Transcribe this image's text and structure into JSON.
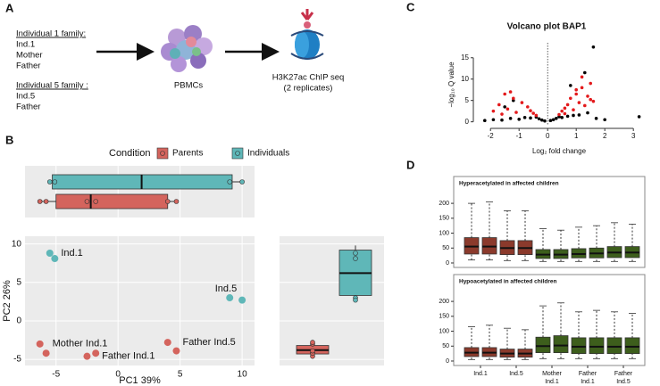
{
  "panel_labels": [
    "A",
    "B",
    "C",
    "D"
  ],
  "diagram": {
    "families": [
      {
        "title": "Individual 1 family:",
        "members": [
          "Ind.1",
          "Mother",
          "Father"
        ]
      },
      {
        "title": "Individual 5 family :",
        "members": [
          "Ind.5",
          "Father"
        ]
      }
    ],
    "steps": [
      "PBMCs",
      "H3K27ac ChIP seq",
      "(2 replicates)"
    ]
  },
  "chart_data": [
    {
      "type": "scatter",
      "xlabel": "PC1 39%",
      "ylabel": "PC2 26%",
      "legend_title": "Condition",
      "xlim": [
        -7.5,
        11
      ],
      "ylim": [
        -5.8,
        11
      ],
      "xticks": [
        -5,
        0,
        5,
        10
      ],
      "yticks": [
        -5,
        0,
        5,
        10
      ],
      "grid": true,
      "series": [
        {
          "name": "Parents",
          "color": "#d4645d",
          "groups": [
            {
              "label": "Mother Ind.1",
              "x": [
                -6.3,
                -5.8
              ],
              "y": [
                -3.0,
                -4.2
              ]
            },
            {
              "label": "Father Ind.1",
              "x": [
                -2.5,
                -1.8
              ],
              "y": [
                -4.6,
                -4.2
              ]
            },
            {
              "label": "Father Ind.5",
              "x": [
                4.0,
                4.7
              ],
              "y": [
                -2.8,
                -3.9
              ]
            }
          ]
        },
        {
          "name": "Individuals",
          "color": "#5fb7b8",
          "groups": [
            {
              "label": "Ind.1",
              "x": [
                -5.5,
                -5.1
              ],
              "y": [
                8.8,
                8.1
              ]
            },
            {
              "label": "Ind.5",
              "x": [
                9.0,
                10.0
              ],
              "y": [
                3.0,
                2.7
              ]
            }
          ]
        }
      ]
    },
    {
      "type": "boxplot",
      "orientation": "horizontal",
      "series": [
        {
          "color": "#5fb7b8",
          "stats": [
            -5.5,
            -5.3,
            1.9,
            9.2,
            10.0
          ]
        },
        {
          "color": "#d4645d",
          "stats": [
            -6.3,
            -5.0,
            -2.2,
            4.0,
            4.7
          ]
        }
      ]
    },
    {
      "type": "boxplot",
      "orientation": "vertical",
      "series": [
        {
          "color": "#d4645d",
          "stats": [
            -4.6,
            -4.3,
            -3.8,
            -3.2,
            -2.8
          ]
        },
        {
          "color": "#5fb7b8",
          "stats": [
            2.7,
            3.3,
            6.2,
            9.2,
            9.8
          ]
        }
      ]
    },
    {
      "type": "volcano",
      "title": "Volcano plot BAP1",
      "xlabel": "Log₂ fold change",
      "ylabel": "−log₁₀ Q value",
      "xlim": [
        -2.6,
        3.4
      ],
      "ylim": [
        -0.7,
        18.5
      ],
      "xticks": [
        -2,
        -1,
        0,
        1,
        2,
        3
      ],
      "yticks": [
        0,
        5,
        10,
        15
      ],
      "series": [
        {
          "color": "#000000",
          "x": [
            -2.2,
            -1.9,
            -1.6,
            -1.3,
            -1.0,
            -0.8,
            -0.6,
            -0.4,
            -0.3,
            -0.2,
            -0.1,
            0.1,
            0.2,
            0.3,
            0.4,
            0.5,
            0.7,
            0.9,
            1.1,
            1.4,
            1.7,
            2.0,
            3.2,
            1.6,
            -1.2,
            -1.5,
            1.3,
            0.8
          ],
          "y": [
            0.3,
            0.5,
            0.4,
            0.8,
            0.6,
            1.0,
            0.9,
            1.1,
            0.7,
            0.4,
            0.2,
            0.3,
            0.5,
            0.8,
            1.2,
            1.0,
            1.3,
            1.5,
            1.6,
            2.1,
            0.8,
            0.5,
            1.2,
            17.5,
            5.0,
            3.5,
            11.5,
            8.5
          ]
        },
        {
          "color": "#e31a1c",
          "x": [
            -1.9,
            -1.7,
            -1.5,
            -1.4,
            -1.2,
            -1.1,
            -0.9,
            -0.7,
            -0.5,
            -0.4,
            -1.3,
            -1.6,
            0.4,
            0.5,
            0.6,
            0.7,
            0.8,
            0.9,
            1.0,
            1.1,
            1.2,
            1.3,
            1.4,
            1.5,
            1.6,
            1.0,
            1.2,
            1.5,
            0.6,
            -0.6
          ],
          "y": [
            2.5,
            4.0,
            6.5,
            3.0,
            5.5,
            2.2,
            4.5,
            3.5,
            2.0,
            1.5,
            7.0,
            1.8,
            1.7,
            2.5,
            3.2,
            4.0,
            5.5,
            2.8,
            6.5,
            4.5,
            8.0,
            3.8,
            6.0,
            9.0,
            4.8,
            7.5,
            10.5,
            5.2,
            1.9,
            2.6
          ]
        }
      ]
    },
    {
      "type": "boxplot",
      "orientation": "vertical",
      "title": "Hyperacetylated in affected children",
      "ylim": [
        -15,
        290
      ],
      "yticks": [
        0,
        50,
        100,
        150,
        200
      ],
      "series": [
        {
          "color": "#8b3a2c",
          "values": [
            [
              10,
              30,
              55,
              85,
              200
            ],
            [
              10,
              30,
              55,
              85,
              205
            ],
            [
              8,
              28,
              50,
              75,
              175
            ],
            [
              8,
              28,
              50,
              75,
              175
            ]
          ]
        },
        {
          "color": "#3d5e1c",
          "values": [
            [
              5,
              15,
              28,
              45,
              115
            ],
            [
              5,
              15,
              28,
              45,
              110
            ],
            [
              5,
              17,
              30,
              48,
              120
            ],
            [
              5,
              17,
              32,
              50,
              125
            ],
            [
              5,
              18,
              35,
              55,
              135
            ],
            [
              5,
              18,
              35,
              55,
              130
            ]
          ]
        }
      ]
    },
    {
      "type": "boxplot",
      "orientation": "vertical",
      "title": "Hypoacetylated in affected children",
      "ylim": [
        -15,
        290
      ],
      "yticks": [
        0,
        50,
        100,
        150,
        200
      ],
      "categories": [
        [
          "Ind.1"
        ],
        [
          "Ind.5"
        ],
        [
          "Mother",
          "Ind.1"
        ],
        [
          "Father",
          "Ind.1"
        ],
        [
          "Father",
          "Ind.5"
        ]
      ],
      "series": [
        {
          "color": "#8b3a2c",
          "values": [
            [
              5,
              15,
              28,
              45,
              115
            ],
            [
              5,
              15,
              28,
              45,
              120
            ],
            [
              5,
              13,
              25,
              40,
              110
            ],
            [
              5,
              13,
              25,
              40,
              105
            ]
          ]
        },
        {
          "color": "#3d5e1c",
          "values": [
            [
              8,
              28,
              50,
              80,
              185
            ],
            [
              8,
              28,
              52,
              85,
              195
            ],
            [
              8,
              25,
              48,
              78,
              165
            ],
            [
              8,
              25,
              48,
              78,
              170
            ],
            [
              8,
              25,
              48,
              78,
              165
            ],
            [
              8,
              25,
              48,
              78,
              160
            ]
          ]
        }
      ]
    }
  ]
}
